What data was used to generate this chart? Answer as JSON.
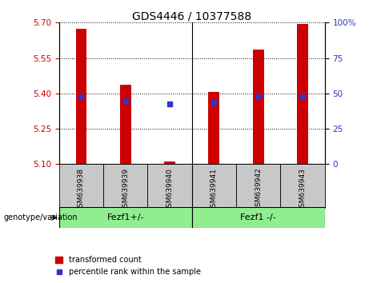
{
  "title": "GDS4446 / 10377588",
  "samples": [
    "GSM639938",
    "GSM639939",
    "GSM639940",
    "GSM639941",
    "GSM639942",
    "GSM639943"
  ],
  "red_values": [
    5.675,
    5.435,
    5.112,
    5.405,
    5.585,
    5.695
  ],
  "blue_values": [
    5.385,
    5.368,
    5.355,
    5.362,
    5.385,
    5.385
  ],
  "ymin": 5.1,
  "ymax": 5.7,
  "y2min": 0,
  "y2max": 100,
  "yticks_left": [
    5.1,
    5.25,
    5.4,
    5.55,
    5.7
  ],
  "yticks_right": [
    0,
    25,
    50,
    75,
    100
  ],
  "bar_color": "#cc0000",
  "blue_color": "#3333cc",
  "bar_width": 0.25,
  "legend_labels": [
    "transformed count",
    "percentile rank within the sample"
  ],
  "group1_label": "Fezf1+/-",
  "group2_label": "Fezf1 -/-",
  "group_label_text": "genotype/variation",
  "group_color": "#90ee90",
  "sample_bg": "#c8c8c8",
  "left_axis_color": "#cc0000",
  "right_axis_color": "#3333cc"
}
